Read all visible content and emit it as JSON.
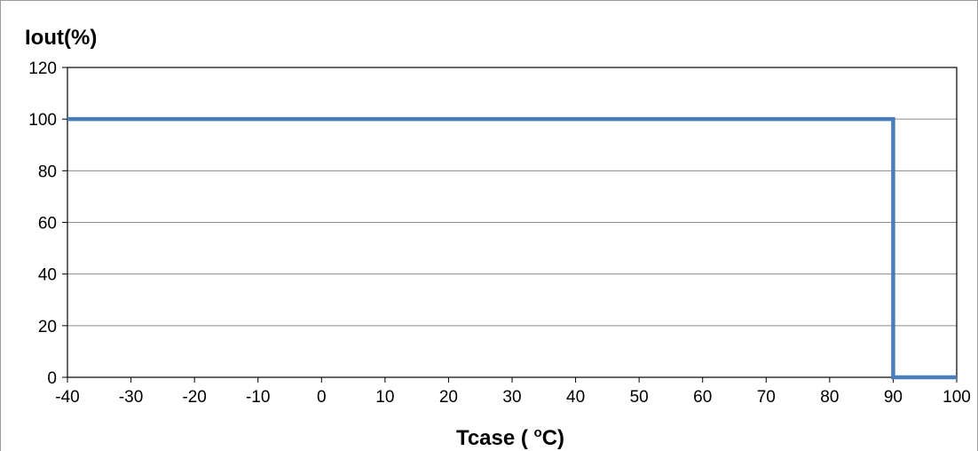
{
  "chart_data": {
    "type": "line",
    "title": "",
    "xlabel": "Tcase ( ",
    "xlabel_sup": "o",
    "xlabel_tail": "C)",
    "ylabel": "Iout(%)",
    "xlim": [
      -40,
      100
    ],
    "ylim": [
      0,
      120
    ],
    "xticks": [
      "-40",
      "-30",
      "-20",
      "-10",
      "0",
      "10",
      "20",
      "30",
      "40",
      "50",
      "60",
      "70",
      "80",
      "90",
      "100"
    ],
    "yticks": [
      "0",
      "20",
      "40",
      "60",
      "80",
      "100",
      "120"
    ],
    "grid": true,
    "legend": "none",
    "series": [
      {
        "color": "#4a7ebb",
        "x": [
          -40,
          90,
          90,
          100
        ],
        "y": [
          100,
          100,
          0,
          0
        ]
      }
    ]
  }
}
